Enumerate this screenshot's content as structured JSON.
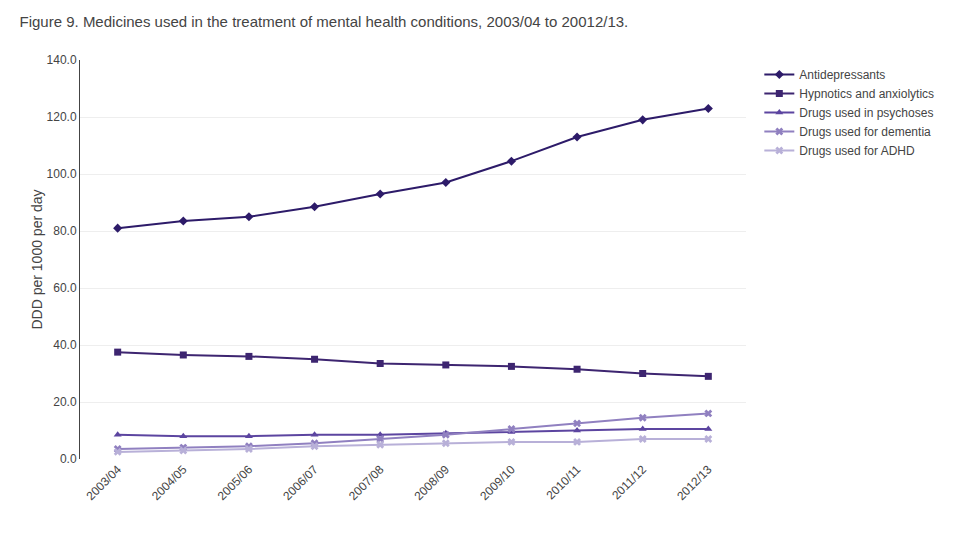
{
  "chart_data": {
    "type": "line",
    "title": "Figure 9. Medicines used in the treatment of mental health conditions, 2003/04 to 20012/13.",
    "ylabel": "DDD per 1000 per day",
    "categories": [
      "2003/04",
      "2004/05",
      "2005/06",
      "2006/07",
      "2007/08",
      "2008/09",
      "2009/10",
      "2010/11",
      "2011/12",
      "2012/13"
    ],
    "series": [
      {
        "name": "Antidepressants",
        "color": "#2d1b69",
        "marker": "diamond",
        "values": [
          81.0,
          83.5,
          85.0,
          88.5,
          93.0,
          97.0,
          104.5,
          113.0,
          119.0,
          123.0
        ]
      },
      {
        "name": "Hypnotics and anxiolytics",
        "color": "#3d2570",
        "marker": "square",
        "values": [
          37.5,
          36.5,
          36.0,
          35.0,
          33.5,
          33.0,
          32.5,
          31.5,
          30.0,
          29.0
        ]
      },
      {
        "name": "Drugs used in psychoses",
        "color": "#5c45a0",
        "marker": "triangle-up",
        "values": [
          8.5,
          8.0,
          8.0,
          8.5,
          8.5,
          9.0,
          9.5,
          10.0,
          10.5,
          10.5
        ]
      },
      {
        "name": "Drugs used for dementia",
        "color": "#9080c0",
        "marker": "x",
        "values": [
          3.5,
          4.0,
          4.5,
          5.5,
          7.0,
          8.5,
          10.5,
          12.5,
          14.5,
          16.0
        ]
      },
      {
        "name": "Drugs used for ADHD",
        "color": "#b8b0d8",
        "marker": "x",
        "values": [
          2.5,
          3.0,
          3.5,
          4.5,
          5.0,
          5.5,
          6.0,
          6.0,
          7.0,
          7.0
        ]
      }
    ],
    "ylim": [
      0,
      140
    ],
    "yticks": [
      {
        "value": 0,
        "label": "0.0"
      },
      {
        "value": 20,
        "label": "20.0"
      },
      {
        "value": 40,
        "label": "40.0"
      },
      {
        "value": 60,
        "label": "60.0"
      },
      {
        "value": 80,
        "label": "80.0"
      },
      {
        "value": 100,
        "label": "100.0"
      },
      {
        "value": 120,
        "label": "120.0"
      },
      {
        "value": 140,
        "label": "140.0"
      }
    ],
    "grid": true,
    "legend": "right"
  }
}
